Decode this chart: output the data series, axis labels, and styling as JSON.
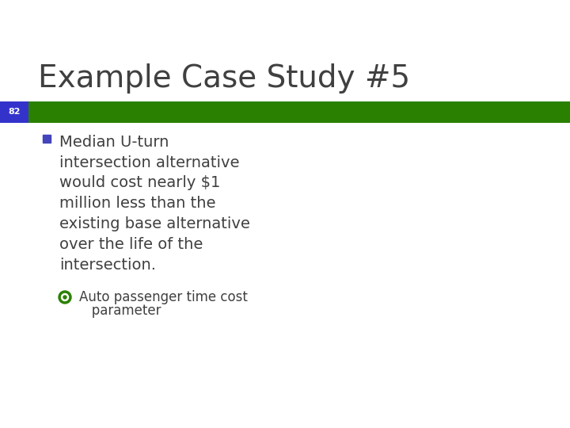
{
  "title": "Example Case Study #5",
  "title_color": "#404040",
  "title_fontsize": 28,
  "bg_color": "#ffffff",
  "bar_green_color": "#2a8000",
  "page_num_bg": "#3333cc",
  "page_number": "82",
  "page_num_color": "#ffffff",
  "page_num_fontsize": 8,
  "bullet_text_main": "Median U-turn\nintersection alternative\nwould cost nearly $1\nmillion less than the\nexisting base alternative\nover the life of the\nintersection.",
  "bullet_text_sub_line1": "Auto passenger time cost",
  "bullet_text_sub_line2": "   parameter",
  "text_color": "#404040",
  "bullet_fontsize": 14,
  "sub_bullet_fontsize": 12,
  "bullet_square_color": "#4444bb",
  "sub_bullet_color": "#2a8000"
}
